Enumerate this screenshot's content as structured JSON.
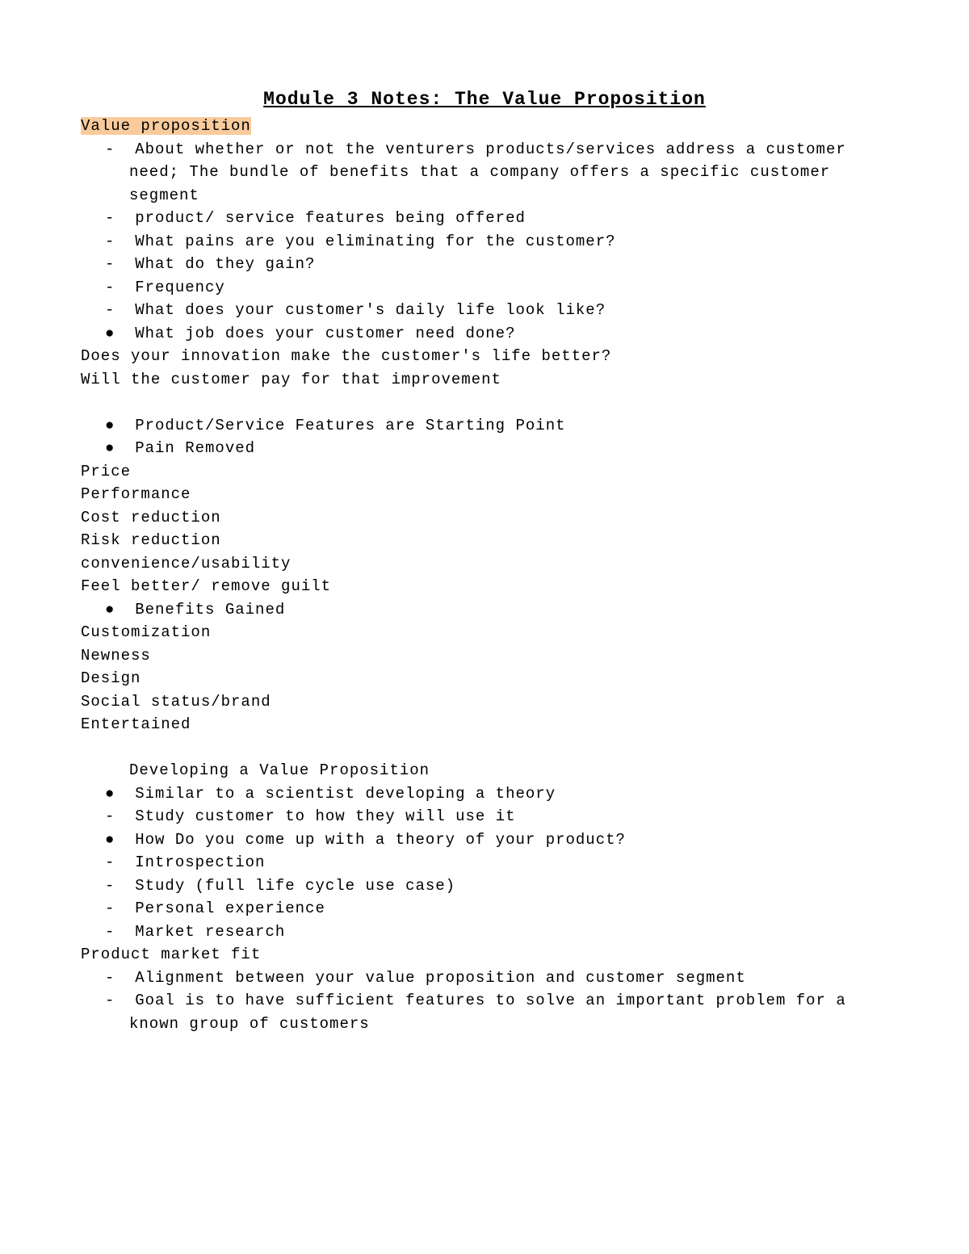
{
  "title": "Module 3 Notes: The Value Proposition",
  "section_heading": "Value proposition",
  "highlight_bg": "#f9cb9c",
  "text_color": "#000000",
  "bg_color": "#ffffff",
  "font_family": "Courier New",
  "font_size_body": 19,
  "font_size_title": 23,
  "vp_items": [
    {
      "marker": "-",
      "text": "About whether or not the venturers products/services address a customer need; The bundle of benefits that a company offers a specific customer segment"
    },
    {
      "marker": "-",
      "text": "product/ service features being offered"
    },
    {
      "marker": "-",
      "text": "What pains are you eliminating for the customer?"
    },
    {
      "marker": "-",
      "text": "What do they gain?"
    },
    {
      "marker": "-",
      "text": "Frequency"
    },
    {
      "marker": "-",
      "text": "What does your customer's daily life look like?"
    },
    {
      "marker": "●",
      "text": "What job does your customer need done?"
    }
  ],
  "q1": "Does your innovation make the customer's life better?",
  "q2": "Will the customer pay for that improvement",
  "mid_bullets": [
    {
      "marker": "●",
      "text": "Product/Service Features are Starting Point"
    },
    {
      "marker": "●",
      "text": "Pain Removed"
    }
  ],
  "pain_list": [
    "Price",
    "Performance",
    "Cost reduction",
    "Risk reduction",
    "convenience/usability",
    "Feel better/ remove guilt"
  ],
  "benefits_bullet": {
    "marker": "●",
    "text": "Benefits Gained"
  },
  "benefits_list": [
    "Customization",
    "Newness",
    "Design",
    "Social status/brand",
    "Entertained"
  ],
  "dev_heading": "Developing a Value Proposition",
  "dev_items": [
    {
      "marker": "●",
      "text": "Similar to a scientist developing a theory"
    },
    {
      "marker": "-",
      "text": "Study customer to how they will use it"
    },
    {
      "marker": "●",
      "text": "How Do you come up with a theory of your product?"
    },
    {
      "marker": "-",
      "text": "Introspection"
    },
    {
      "marker": "-",
      "text": "Study (full life cycle use case)"
    },
    {
      "marker": "-",
      "text": "Personal experience"
    },
    {
      "marker": "-",
      "text": "Market research"
    }
  ],
  "pmf_heading": "Product market fit",
  "pmf_items": [
    {
      "marker": "-",
      "text": "Alignment between your value proposition and customer segment"
    },
    {
      "marker": "-",
      "text": "Goal is to have sufficient features to solve an important problem for a known group of customers"
    }
  ]
}
